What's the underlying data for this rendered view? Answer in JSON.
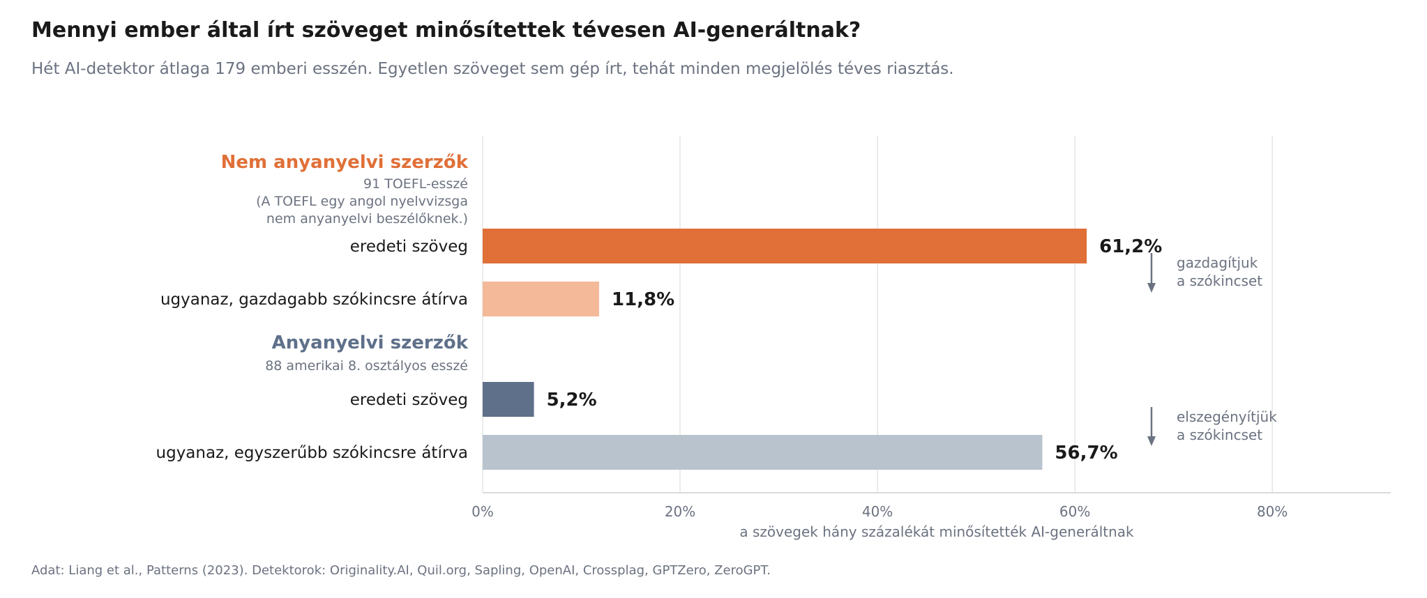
{
  "header": {
    "title": "Mennyi ember által írt szöveget minősítettek tévesen AI-generáltnak?",
    "subtitle": "Hét AI-detektor átlaga 179 emberi esszén. Egyetlen szöveget sem gép írt, tehát minden megjelölés téves riasztás."
  },
  "footer": {
    "source": "Adat: Liang et al., Patterns (2023). Detektorok: Originality.AI, Quil.org, Sapling, OpenAI, Crossplag, GPTZero, ZeroGPT."
  },
  "chart_data": {
    "type": "bar",
    "orientation": "horizontal",
    "xlabel": "a szövegek hány százalékát minősítették AI-generáltnak",
    "xlim": [
      0,
      92
    ],
    "xticks": [
      0,
      20,
      40,
      60,
      80
    ],
    "xtick_labels": [
      "0%",
      "20%",
      "40%",
      "60%",
      "80%"
    ],
    "grid": true,
    "groups": [
      {
        "name": "Nem anyanyelvi szerzők",
        "color": "#E07038",
        "note_lines": [
          "91 TOEFL-esszé",
          "(A TOEFL egy angol nyelvvizsga",
          "nem anyanyelvi beszélőknek.)"
        ],
        "bars": [
          {
            "label": "eredeti szöveg",
            "value": 61.2,
            "value_label": "61,2%",
            "color": "#E07038"
          },
          {
            "label": "ugyanaz, gazdagabb szókincsre átírva",
            "value": 11.8,
            "value_label": "11,8%",
            "color": "#F4B999"
          }
        ],
        "annotation": [
          "gazdagítjuk",
          "a szókincset"
        ]
      },
      {
        "name": "Anyanyelvi szerzők",
        "color": "#5E708A",
        "note_lines": [
          "88 amerikai 8. osztályos esszé"
        ],
        "bars": [
          {
            "label": "eredeti szöveg",
            "value": 5.2,
            "value_label": "5,2%",
            "color": "#5E708A"
          },
          {
            "label": "ugyanaz, egyszerűbb szókincsre átírva",
            "value": 56.7,
            "value_label": "56,7%",
            "color": "#B8C3CD"
          }
        ],
        "annotation": [
          "elszegényítjük",
          "a szókincset"
        ]
      }
    ],
    "arrow_color": "#6b7280"
  }
}
